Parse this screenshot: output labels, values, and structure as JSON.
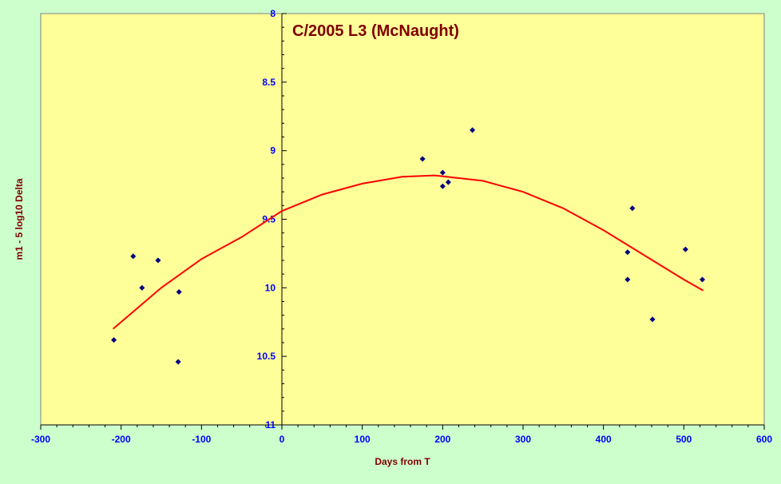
{
  "chart_data": {
    "type": "scatter",
    "title": "C/2005 L3 (McNaught)",
    "xlabel": "Days from T",
    "ylabel": "m1 - 5 log10 Delta",
    "xlim": [
      -300,
      600
    ],
    "ylim": [
      8,
      11
    ],
    "y_reversed": true,
    "x_ticks": [
      -300,
      -200,
      -100,
      0,
      100,
      200,
      300,
      400,
      500,
      600
    ],
    "x_tick_labels": [
      "-300",
      "-200",
      "-100",
      "0",
      "100",
      "200",
      "300",
      "400",
      "500",
      "600"
    ],
    "y_ticks": [
      8,
      8.5,
      9,
      9.5,
      10,
      10.5,
      11
    ],
    "y_tick_labels": [
      "8",
      "8.5",
      "9",
      "9.5",
      "10",
      "10.5",
      "11"
    ],
    "grid": false,
    "y_axis_at_x": 0,
    "colors": {
      "page_background": "#ccffcc",
      "plot_background": "#ffff99",
      "points": "#000080",
      "fit_line": "#ff0000",
      "title": "#800000",
      "axis_titles": "#800000",
      "tick_labels": "#0000ff"
    },
    "series": [
      {
        "type": "scatter",
        "marker": "diamond",
        "x": [
          -209,
          -185,
          -174,
          -154,
          -128,
          -129,
          175,
          200,
          200,
          207,
          237,
          430,
          430,
          436,
          461,
          502,
          523
        ],
        "y": [
          10.38,
          9.77,
          10.0,
          9.8,
          10.03,
          10.54,
          9.06,
          9.16,
          9.26,
          9.23,
          8.85,
          9.74,
          9.94,
          9.42,
          10.23,
          9.72,
          9.94
        ]
      },
      {
        "type": "line",
        "x": [
          -210,
          -150,
          -100,
          -50,
          0,
          50,
          100,
          150,
          190,
          250,
          300,
          350,
          400,
          450,
          500,
          524
        ],
        "y": [
          10.3,
          10.0,
          9.79,
          9.63,
          9.44,
          9.32,
          9.24,
          9.19,
          9.18,
          9.22,
          9.3,
          9.42,
          9.58,
          9.76,
          9.94,
          10.02
        ]
      }
    ]
  }
}
